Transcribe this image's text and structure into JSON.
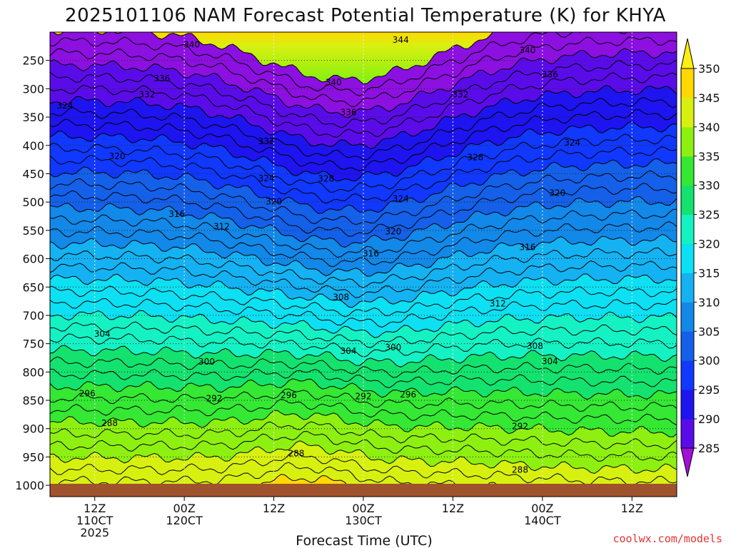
{
  "chart_data": {
    "type": "heatmap",
    "title": "2025101106 NAM Forecast Potential Temperature (K) for KHYA",
    "xlabel": "Forecast Time (UTC)",
    "ylabel": "",
    "x_ticks": [
      {
        "line1": "12Z",
        "line2": "110CT",
        "line3": "2025"
      },
      {
        "line1": "00Z",
        "line2": "120CT",
        "line3": ""
      },
      {
        "line1": "12Z",
        "line2": "",
        "line3": ""
      },
      {
        "line1": "00Z",
        "line2": "130CT",
        "line3": ""
      },
      {
        "line1": "12Z",
        "line2": "",
        "line3": ""
      },
      {
        "line1": "00Z",
        "line2": "140CT",
        "line3": ""
      },
      {
        "line1": "12Z",
        "line2": "",
        "line3": ""
      }
    ],
    "x_hours": [
      0,
      12,
      24,
      36,
      48,
      60,
      72
    ],
    "x_range_hours": [
      -6,
      78
    ],
    "y_ticks": [
      250,
      300,
      350,
      400,
      450,
      500,
      550,
      600,
      650,
      700,
      750,
      800,
      850,
      900,
      950,
      1000
    ],
    "y_range_hpa": [
      200,
      1020
    ],
    "colorbar": {
      "levels": [
        285,
        290,
        295,
        300,
        305,
        310,
        315,
        320,
        325,
        330,
        335,
        340,
        345,
        350
      ],
      "colors": [
        "#8c10e0",
        "#5a0ce8",
        "#1e14ef",
        "#1038ff",
        "#1460e8",
        "#1288e8",
        "#14b2f2",
        "#0ce0f2",
        "#14f2c4",
        "#14e26e",
        "#34e834",
        "#8ef010",
        "#d8f010",
        "#ffd800"
      ],
      "low_color": "#a010d8",
      "high_color": "#ffee10"
    },
    "contour_labels": [
      {
        "text": "344",
        "hour": 41,
        "p": 214
      },
      {
        "text": "340",
        "hour": 13,
        "p": 222
      },
      {
        "text": "340",
        "hour": 58,
        "p": 232
      },
      {
        "text": "336",
        "hour": 9,
        "p": 282
      },
      {
        "text": "340",
        "hour": 32,
        "p": 289
      },
      {
        "text": "336",
        "hour": 61,
        "p": 275
      },
      {
        "text": "332",
        "hour": 7,
        "p": 310
      },
      {
        "text": "332",
        "hour": 49,
        "p": 310
      },
      {
        "text": "336",
        "hour": 34,
        "p": 342
      },
      {
        "text": "324",
        "hour": -4,
        "p": 330
      },
      {
        "text": "332",
        "hour": 23,
        "p": 393
      },
      {
        "text": "324",
        "hour": 64,
        "p": 395
      },
      {
        "text": "320",
        "hour": 3,
        "p": 419
      },
      {
        "text": "328",
        "hour": 51,
        "p": 421
      },
      {
        "text": "324",
        "hour": 23,
        "p": 458
      },
      {
        "text": "328",
        "hour": 31,
        "p": 459
      },
      {
        "text": "320",
        "hour": 62,
        "p": 484
      },
      {
        "text": "324",
        "hour": 41,
        "p": 494
      },
      {
        "text": "320",
        "hour": 24,
        "p": 499
      },
      {
        "text": "316",
        "hour": 11,
        "p": 521
      },
      {
        "text": "312",
        "hour": 17,
        "p": 543
      },
      {
        "text": "320",
        "hour": 40,
        "p": 552
      },
      {
        "text": "316",
        "hour": 58,
        "p": 580
      },
      {
        "text": "316",
        "hour": 37,
        "p": 591
      },
      {
        "text": "308",
        "hour": 33,
        "p": 668
      },
      {
        "text": "312",
        "hour": 54,
        "p": 679
      },
      {
        "text": "304",
        "hour": 1,
        "p": 733
      },
      {
        "text": "308",
        "hour": 59,
        "p": 754
      },
      {
        "text": "300",
        "hour": 40,
        "p": 757
      },
      {
        "text": "304",
        "hour": 34,
        "p": 763
      },
      {
        "text": "304",
        "hour": 61,
        "p": 781
      },
      {
        "text": "300",
        "hour": 15,
        "p": 782
      },
      {
        "text": "296",
        "hour": -1,
        "p": 838
      },
      {
        "text": "292",
        "hour": 16,
        "p": 847
      },
      {
        "text": "296",
        "hour": 26,
        "p": 841
      },
      {
        "text": "296",
        "hour": 42,
        "p": 840
      },
      {
        "text": "292",
        "hour": 36,
        "p": 843
      },
      {
        "text": "288",
        "hour": 2,
        "p": 890
      },
      {
        "text": "292",
        "hour": 57,
        "p": 896
      },
      {
        "text": "288",
        "hour": 27,
        "p": 944
      },
      {
        "text": "288",
        "hour": 57,
        "p": 973
      }
    ]
  },
  "credit": "coolwx.com/models"
}
